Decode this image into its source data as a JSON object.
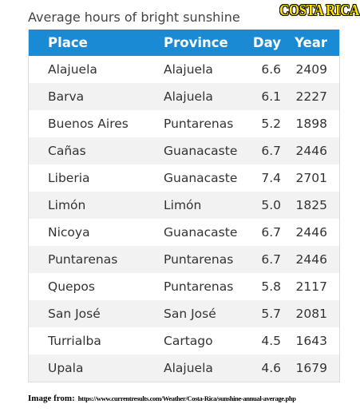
{
  "header": {
    "title": "Average hours of bright sunshine",
    "badge": "COSTA RICA"
  },
  "table": {
    "columns": [
      "Place",
      "Province",
      "Day",
      "Year"
    ],
    "rows": [
      [
        "Alajuela",
        "Alajuela",
        "6.6",
        "2409"
      ],
      [
        "Barva",
        "Alajuela",
        "6.1",
        "2227"
      ],
      [
        "Buenos Aires",
        "Puntarenas",
        "5.2",
        "1898"
      ],
      [
        "Cañas",
        "Guanacaste",
        "6.7",
        "2446"
      ],
      [
        "Liberia",
        "Guanacaste",
        "7.4",
        "2701"
      ],
      [
        "Limón",
        "Limón",
        "5.0",
        "1825"
      ],
      [
        "Nicoya",
        "Guanacaste",
        "6.7",
        "2446"
      ],
      [
        "Puntarenas",
        "Puntarenas",
        "6.7",
        "2446"
      ],
      [
        "Quepos",
        "Puntarenas",
        "5.8",
        "2117"
      ],
      [
        "San José",
        "San José",
        "5.7",
        "2081"
      ],
      [
        "Turrialba",
        "Cartago",
        "4.5",
        "1643"
      ],
      [
        "Upala",
        "Alajuela",
        "4.6",
        "1679"
      ]
    ]
  },
  "footer": {
    "label": "Image from:",
    "url": "https://www.currentresults.com/Weather/Costa-Rica/sunshine-annual-average.php"
  }
}
